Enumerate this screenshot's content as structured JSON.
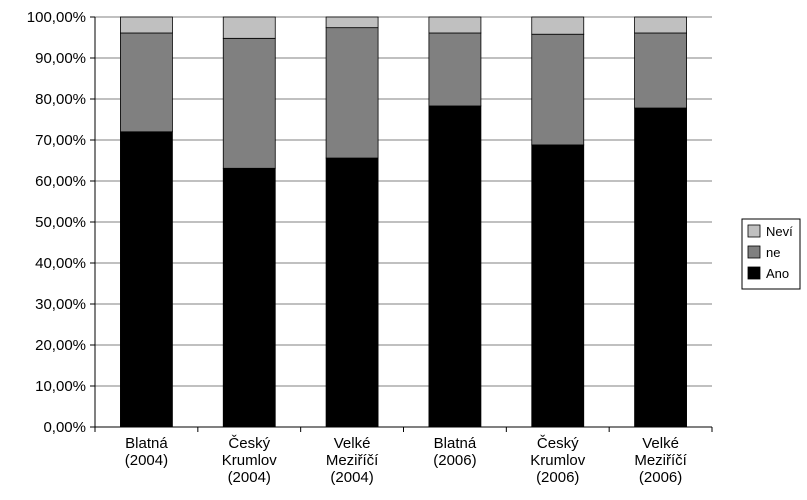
{
  "chart_data": {
    "type": "bar",
    "stacked": true,
    "percent": true,
    "categories": [
      [
        "Blatná",
        "(2004)"
      ],
      [
        "Český",
        "Krumlov",
        "(2004)"
      ],
      [
        "Velké",
        "Meziříčí",
        "(2004)"
      ],
      [
        "Blatná",
        "(2006)"
      ],
      [
        "Český",
        "Krumlov",
        "(2006)"
      ],
      [
        "Velké",
        "Meziříčí",
        "(2006)"
      ]
    ],
    "series": [
      {
        "name": "Ano",
        "color": "#000000",
        "values": [
          72.0,
          63.1,
          65.6,
          78.3,
          68.8,
          77.8
        ]
      },
      {
        "name": "ne",
        "color": "#808080",
        "values": [
          24.1,
          31.7,
          31.8,
          17.8,
          27.0,
          18.3
        ]
      },
      {
        "name": "Neví",
        "color": "#c0c0c0",
        "values": [
          3.9,
          5.2,
          2.6,
          3.9,
          4.2,
          3.9
        ]
      }
    ],
    "ylim": [
      0,
      100
    ],
    "y_ticks": [
      "0,00%",
      "10,00%",
      "20,00%",
      "30,00%",
      "40,00%",
      "50,00%",
      "60,00%",
      "70,00%",
      "80,00%",
      "90,00%",
      "100,00%"
    ],
    "grid": true,
    "legend": {
      "position": "right",
      "order": [
        "Neví",
        "ne",
        "Ano"
      ]
    }
  }
}
